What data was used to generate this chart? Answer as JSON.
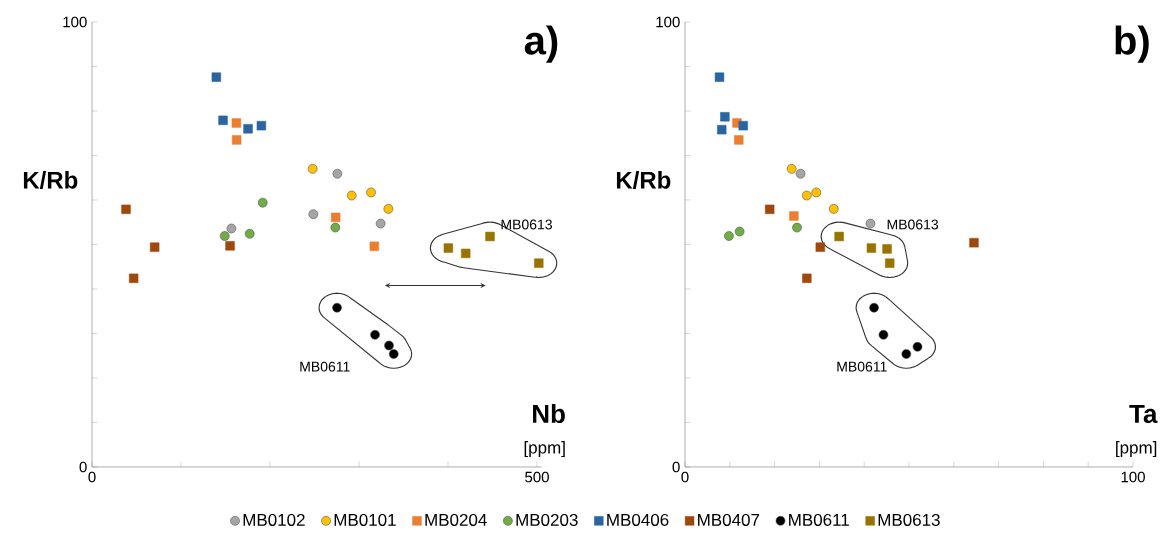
{
  "chart_data": [
    {
      "type": "scatter",
      "title": "a)",
      "xlabel": "Nb",
      "ylabel": "K/Rb",
      "xlim": [
        0,
        505
      ],
      "ylim": [
        0,
        100
      ],
      "xticks": [
        0,
        {
          "value": 100,
          "label": null
        },
        {
          "value": 200,
          "label": null
        },
        {
          "value": 300,
          "label": null
        },
        {
          "value": 400,
          "label": null
        },
        500
      ],
      "yticks": [
        0,
        {
          "value": 10,
          "label": null
        },
        {
          "value": 20,
          "label": null
        },
        {
          "value": 30,
          "label": null
        },
        {
          "value": 40,
          "label": null
        },
        {
          "value": 50,
          "label": null
        },
        {
          "value": 60,
          "label": null
        },
        {
          "value": 70,
          "label": null
        },
        {
          "value": 80,
          "label": null
        },
        {
          "value": 90,
          "label": null
        },
        100
      ],
      "legend": "bottom",
      "grid": false,
      "annotations": [
        "[ppm]",
        "MB0613",
        "MB0611"
      ],
      "series": [
        {
          "name": "MB0102",
          "color": "#a5a5a5",
          "marker": "circle",
          "x": [
            275.7,
            248.7,
            324.3,
            156.6
          ],
          "values": [
            65.9,
            56.8,
            54.7,
            53.6
          ]
        },
        {
          "name": "MB0101",
          "color": "#ffc000",
          "marker": "circle",
          "x": [
            247.9,
            291.8,
            313.5,
            333.0
          ],
          "values": [
            67.0,
            61.0,
            61.7,
            58.0
          ]
        },
        {
          "name": "MB0204",
          "color": "#ed7d31",
          "marker": "square",
          "x": [
            162.2,
            162.5,
            273.8,
            317.2
          ],
          "values": [
            77.3,
            73.5,
            56.1,
            49.6
          ]
        },
        {
          "name": "MB0203",
          "color": "#70ad47",
          "marker": "circle",
          "x": [
            191.8,
            149.1,
            177.2,
            273.4
          ],
          "values": [
            59.4,
            51.9,
            52.4,
            53.8
          ]
        },
        {
          "name": "MB0406",
          "color": "#2a65a0",
          "marker": "square",
          "x": [
            139.7,
            147.2,
            175.3,
            190.3
          ],
          "values": [
            87.6,
            77.9,
            76.0,
            76.7
          ]
        },
        {
          "name": "MB0407",
          "color": "#9e480e",
          "marker": "square",
          "x": [
            38.2,
            70.4,
            46.8,
            155.1
          ],
          "values": [
            57.9,
            49.4,
            42.4,
            49.7
          ]
        },
        {
          "name": "MB0611",
          "color": "#000000",
          "marker": "circle",
          "x": [
            275.3,
            318.0,
            333.7,
            339.0
          ],
          "values": [
            35.8,
            29.7,
            27.3,
            25.4
          ]
        },
        {
          "name": "MB0613",
          "color": "#997300",
          "marker": "square",
          "x": [
            400.4,
            419.9,
            447.2,
            502.0
          ],
          "values": [
            49.2,
            48.0,
            51.8,
            45.8
          ]
        }
      ]
    },
    {
      "type": "scatter",
      "title": "b)",
      "xlabel": "Ta",
      "ylabel": "K/Rb",
      "xlim": [
        0,
        100
      ],
      "ylim": [
        0,
        100
      ],
      "xticks": [
        0,
        {
          "value": 10,
          "label": null
        },
        {
          "value": 20,
          "label": null
        },
        {
          "value": 30,
          "label": null
        },
        {
          "value": 40,
          "label": null
        },
        {
          "value": 50,
          "label": null
        },
        {
          "value": 60,
          "label": null
        },
        {
          "value": 70,
          "label": null
        },
        {
          "value": 80,
          "label": null
        },
        {
          "value": 90,
          "label": null
        },
        100
      ],
      "yticks": [
        0,
        {
          "value": 10,
          "label": null
        },
        {
          "value": 20,
          "label": null
        },
        {
          "value": 30,
          "label": null
        },
        {
          "value": 40,
          "label": null
        },
        {
          "value": 50,
          "label": null
        },
        {
          "value": 60,
          "label": null
        },
        {
          "value": 70,
          "label": null
        },
        {
          "value": 80,
          "label": null
        },
        {
          "value": 90,
          "label": null
        },
        100
      ],
      "grid": false,
      "annotations": [
        "[ppm]",
        "MB0613",
        "MB0611"
      ],
      "series": [
        {
          "color": "#a5a5a5",
          "marker": "circle",
          "x": [
            25.8,
            41.4
          ],
          "values": [
            65.9,
            54.7
          ]
        },
        {
          "color": "#ffc000",
          "marker": "circle",
          "x": [
            23.8,
            27.2,
            29.3,
            33.2
          ],
          "values": [
            67.0,
            61.0,
            61.7,
            58.0
          ]
        },
        {
          "color": "#ed7d31",
          "marker": "square",
          "x": [
            11.6,
            12.0,
            24.3
          ],
          "values": [
            77.3,
            73.5,
            56.4
          ]
        },
        {
          "color": "#70ad47",
          "marker": "circle",
          "x": [
            9.8,
            12.2,
            25.0
          ],
          "values": [
            51.9,
            52.9,
            53.8
          ]
        },
        {
          "color": "#2a65a0",
          "marker": "square",
          "x": [
            7.7,
            8.9,
            8.2,
            13.0
          ],
          "values": [
            87.6,
            78.7,
            75.8,
            76.7
          ]
        },
        {
          "color": "#9e480e",
          "marker": "square",
          "x": [
            18.9,
            30.2,
            27.2,
            64.5
          ],
          "values": [
            57.9,
            49.4,
            42.4,
            50.4
          ]
        },
        {
          "color": "#000000",
          "marker": "circle",
          "x": [
            42.2,
            44.3,
            49.4,
            51.9
          ],
          "values": [
            35.8,
            29.7,
            25.4,
            27.0
          ]
        },
        {
          "color": "#997300",
          "marker": "square",
          "x": [
            34.4,
            41.6,
            45.1,
            45.7
          ],
          "values": [
            51.8,
            49.2,
            49.0,
            45.8
          ]
        }
      ]
    }
  ]
}
